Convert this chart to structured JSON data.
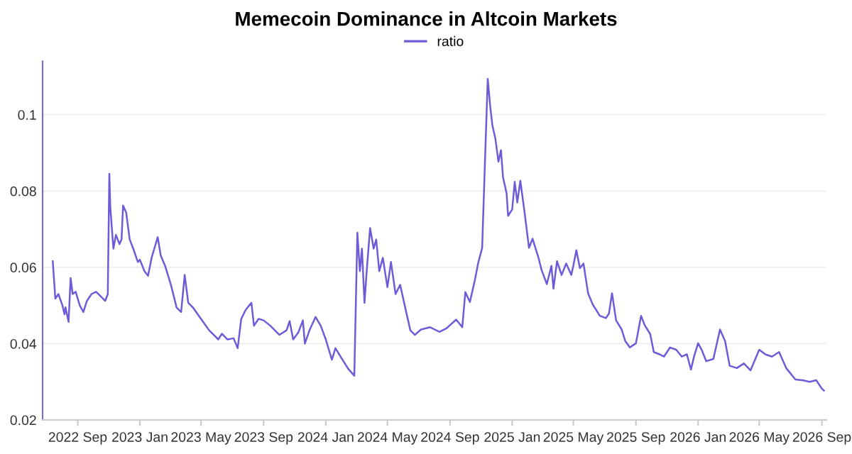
{
  "chart_data": {
    "type": "line",
    "title": "Memecoin Dominance in Altcoin Markets",
    "x": [
      "2022-07-14",
      "2022-07-19",
      "2022-07-25",
      "2022-08-02",
      "2022-08-06",
      "2022-08-08",
      "2022-08-14",
      "2022-08-18",
      "2022-08-22",
      "2022-08-28",
      "2022-09-05",
      "2022-09-12",
      "2022-09-19",
      "2022-09-28",
      "2022-10-07",
      "2022-10-16",
      "2022-10-25",
      "2022-10-30",
      "2022-11-02",
      "2022-11-04",
      "2022-11-10",
      "2022-11-15",
      "2022-11-22",
      "2022-11-26",
      "2022-11-29",
      "2022-12-05",
      "2022-12-12",
      "2022-12-19",
      "2022-12-28",
      "2023-01-01",
      "2023-01-10",
      "2023-01-17",
      "2023-01-24",
      "2023-02-05",
      "2023-02-11",
      "2023-02-20",
      "2023-03-03",
      "2023-03-14",
      "2023-03-23",
      "2023-03-30",
      "2023-04-06",
      "2023-04-15",
      "2023-05-01",
      "2023-05-17",
      "2023-06-04",
      "2023-06-11",
      "2023-06-22",
      "2023-07-04",
      "2023-07-12",
      "2023-07-19",
      "2023-07-28",
      "2023-08-08",
      "2023-08-13",
      "2023-08-22",
      "2023-09-01",
      "2023-09-14",
      "2023-10-02",
      "2023-10-16",
      "2023-10-22",
      "2023-10-29",
      "2023-11-08",
      "2023-11-17",
      "2023-11-21",
      "2023-11-30",
      "2023-12-12",
      "2023-12-22",
      "2024-01-01",
      "2024-01-13",
      "2024-01-20",
      "2024-01-31",
      "2024-02-14",
      "2024-02-26",
      "2024-03-03",
      "2024-03-08",
      "2024-03-12",
      "2024-03-17",
      "2024-03-21",
      "2024-03-28",
      "2024-04-04",
      "2024-04-09",
      "2024-04-15",
      "2024-04-22",
      "2024-05-01",
      "2024-05-08",
      "2024-05-17",
      "2024-05-26",
      "2024-06-04",
      "2024-06-15",
      "2024-06-24",
      "2024-07-06",
      "2024-07-24",
      "2024-08-11",
      "2024-08-25",
      "2024-09-13",
      "2024-09-25",
      "2024-10-01",
      "2024-10-10",
      "2024-10-20",
      "2024-10-26",
      "2024-11-03",
      "2024-11-08",
      "2024-11-14",
      "2024-11-19",
      "2024-11-23",
      "2024-11-29",
      "2024-12-05",
      "2024-12-10",
      "2024-12-14",
      "2024-12-21",
      "2024-12-24",
      "2025-01-01",
      "2025-01-06",
      "2025-01-11",
      "2025-01-17",
      "2025-01-25",
      "2025-02-03",
      "2025-02-10",
      "2025-02-21",
      "2025-02-28",
      "2025-03-10",
      "2025-03-19",
      "2025-03-23",
      "2025-03-30",
      "2025-04-08",
      "2025-04-17",
      "2025-04-27",
      "2025-05-01",
      "2025-05-07",
      "2025-05-14",
      "2025-05-21",
      "2025-05-30",
      "2025-06-08",
      "2025-06-22",
      "2025-07-04",
      "2025-07-10",
      "2025-07-16",
      "2025-07-24",
      "2025-08-04",
      "2025-08-11",
      "2025-08-20",
      "2025-09-01",
      "2025-09-11",
      "2025-09-18",
      "2025-09-29",
      "2025-10-06",
      "2025-10-17",
      "2025-10-26",
      "2025-11-07",
      "2025-11-19",
      "2025-11-30",
      "2025-12-10",
      "2025-12-18",
      "2025-12-24",
      "2026-01-01",
      "2026-01-08",
      "2026-01-17",
      "2026-01-31",
      "2026-02-13",
      "2026-02-23",
      "2026-03-04",
      "2026-03-18",
      "2026-04-01",
      "2026-04-14",
      "2026-05-01",
      "2026-05-13",
      "2026-05-26",
      "2026-06-09",
      "2026-06-23",
      "2026-07-11",
      "2026-07-25",
      "2026-08-08",
      "2026-08-21",
      "2026-09-01",
      "2026-09-05"
    ],
    "series": [
      {
        "name": "ratio",
        "color": "#6e5bd8",
        "values": [
          0.0616,
          0.0518,
          0.053,
          0.05,
          0.0477,
          0.0495,
          0.0457,
          0.0572,
          0.053,
          0.0536,
          0.05,
          0.0483,
          0.0512,
          0.053,
          0.0536,
          0.0524,
          0.0512,
          0.053,
          0.0845,
          0.0756,
          0.0649,
          0.0685,
          0.0661,
          0.0673,
          0.0762,
          0.0744,
          0.0673,
          0.0649,
          0.0614,
          0.062,
          0.059,
          0.0578,
          0.0625,
          0.0679,
          0.0631,
          0.0602,
          0.0554,
          0.0495,
          0.0483,
          0.058,
          0.0507,
          0.0495,
          0.0465,
          0.0435,
          0.0411,
          0.0426,
          0.0411,
          0.0414,
          0.0388,
          0.0465,
          0.0489,
          0.0507,
          0.0447,
          0.0465,
          0.0461,
          0.0447,
          0.0423,
          0.0435,
          0.0459,
          0.0411,
          0.0429,
          0.0461,
          0.04,
          0.0435,
          0.047,
          0.0447,
          0.0411,
          0.0358,
          0.0388,
          0.0364,
          0.0334,
          0.0316,
          0.0691,
          0.059,
          0.0649,
          0.0507,
          0.0584,
          0.0703,
          0.0649,
          0.0673,
          0.059,
          0.0625,
          0.0548,
          0.0614,
          0.053,
          0.0554,
          0.05,
          0.0435,
          0.0423,
          0.0437,
          0.0443,
          0.0431,
          0.044,
          0.0463,
          0.0443,
          0.0535,
          0.0509,
          0.0568,
          0.061,
          0.0651,
          0.0854,
          0.1094,
          0.102,
          0.0973,
          0.0937,
          0.0877,
          0.0907,
          0.0836,
          0.0794,
          0.0735,
          0.0752,
          0.0824,
          0.077,
          0.0827,
          0.0747,
          0.0651,
          0.0675,
          0.0628,
          0.0592,
          0.0556,
          0.0604,
          0.0544,
          0.0616,
          0.058,
          0.061,
          0.058,
          0.0604,
          0.0645,
          0.0598,
          0.061,
          0.0532,
          0.0503,
          0.0473,
          0.0467,
          0.0479,
          0.0532,
          0.0461,
          0.0437,
          0.0407,
          0.039,
          0.0401,
          0.0473,
          0.0449,
          0.0425,
          0.0378,
          0.0372,
          0.0366,
          0.039,
          0.0384,
          0.0366,
          0.0372,
          0.0332,
          0.0366,
          0.0401,
          0.0384,
          0.0354,
          0.036,
          0.0437,
          0.0407,
          0.0342,
          0.0336,
          0.0348,
          0.033,
          0.0384,
          0.0372,
          0.0366,
          0.0378,
          0.0336,
          0.0306,
          0.0304,
          0.03,
          0.0304,
          0.0282,
          0.0277
        ]
      }
    ],
    "xlim": [
      "2022-06-24",
      "2026-09-10"
    ],
    "xticks": [
      {
        "value": "2022-09-01",
        "label": "2022 Sep"
      },
      {
        "value": "2023-01-01",
        "label": "2023 Jan"
      },
      {
        "value": "2023-05-01",
        "label": "2023 May"
      },
      {
        "value": "2023-09-01",
        "label": "2023 Sep"
      },
      {
        "value": "2024-01-01",
        "label": "2024 Jan"
      },
      {
        "value": "2024-05-01",
        "label": "2024 May"
      },
      {
        "value": "2024-09-01",
        "label": "2024 Sep"
      },
      {
        "value": "2025-01-01",
        "label": "2025 Jan"
      },
      {
        "value": "2025-05-01",
        "label": "2025 May"
      },
      {
        "value": "2025-09-01",
        "label": "2025 Sep"
      },
      {
        "value": "2026-01-01",
        "label": "2026 Jan"
      },
      {
        "value": "2026-05-01",
        "label": "2026 May"
      },
      {
        "value": "2026-09-01",
        "label": "2026 Sep"
      }
    ],
    "ylim": [
      0.02,
      0.114
    ],
    "yticks": [
      0.02,
      0.04,
      0.06,
      0.08,
      0.1
    ],
    "grid": "y",
    "legend": "top",
    "line_style": "solid"
  }
}
